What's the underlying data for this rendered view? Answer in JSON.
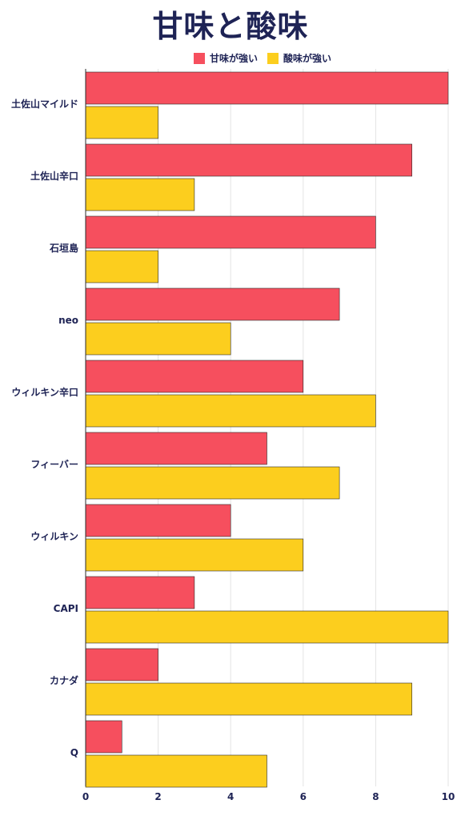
{
  "chart_data": {
    "type": "bar",
    "orientation": "horizontal",
    "title": "甘味と酸味",
    "categories": [
      "土佐山マイルド",
      "土佐山辛口",
      "石垣島",
      "neo",
      "ウィルキン辛口",
      "フィーバー",
      "ウィルキン",
      "CAPI",
      "カナダ",
      "Q"
    ],
    "series": [
      {
        "name": "甘味が強い",
        "color": "#f64f5e",
        "values": [
          10,
          9,
          8,
          7,
          6,
          5,
          4,
          3,
          2,
          1
        ]
      },
      {
        "name": "酸味が強い",
        "color": "#fcce1e",
        "values": [
          2,
          3,
          2,
          4,
          8,
          7,
          6,
          10,
          9,
          5
        ]
      }
    ],
    "xlim": [
      0,
      10
    ],
    "xticks": [
      0,
      2,
      4,
      6,
      8,
      10
    ],
    "grid": true,
    "legend_position": "top"
  }
}
